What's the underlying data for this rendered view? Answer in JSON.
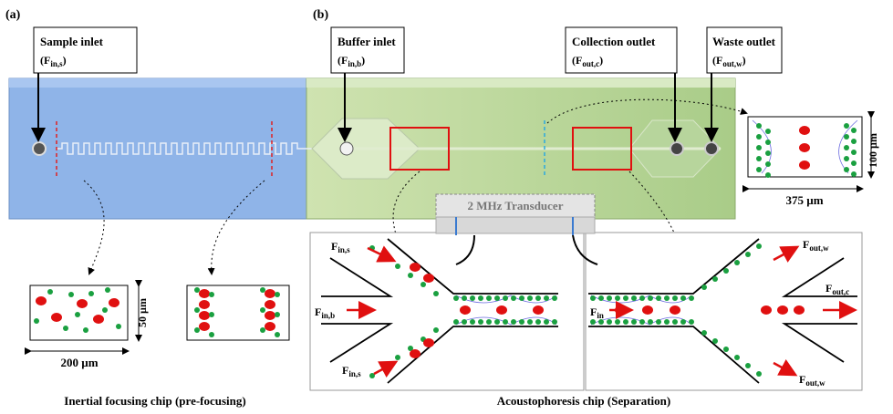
{
  "panels": [
    {
      "label": "(a)",
      "caption": "Inertial focusing chip (pre-focusing)"
    },
    {
      "label": "(b)",
      "caption": "Acoustophoresis chip (Separation)"
    }
  ],
  "callouts": [
    {
      "title": "Sample inlet",
      "symbol": "(F",
      "sub": "in,s",
      "close": ")"
    },
    {
      "title": "Buffer inlet",
      "symbol": "(F",
      "sub": "in,b",
      "close": ")"
    },
    {
      "title": "Collection outlet",
      "symbol": "(F",
      "sub": "out,c",
      "close": ")"
    },
    {
      "title": "Waste outlet",
      "symbol": "(F",
      "sub": "out,w",
      "close": ")"
    }
  ],
  "cross_section": {
    "height": "100 µm",
    "width": "375 µm"
  },
  "prefocus": {
    "height": "50 µm",
    "width": "200 µm"
  },
  "transducer": "2 MHz Transducer",
  "flow_labels": [
    {
      "symbol": "F",
      "sub": "in,s"
    },
    {
      "symbol": "F",
      "sub": "in,b"
    },
    {
      "symbol": "F",
      "sub": "in,s"
    },
    {
      "symbol": "F",
      "sub": "in"
    },
    {
      "symbol": "F",
      "sub": "out,w"
    },
    {
      "symbol": "F",
      "sub": "out,c"
    },
    {
      "symbol": "F",
      "sub": "out,w"
    }
  ]
}
